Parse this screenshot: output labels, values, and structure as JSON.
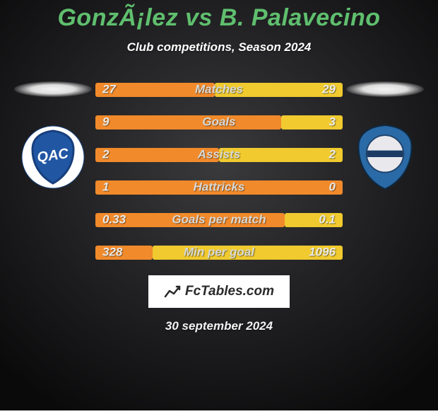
{
  "title": "GonzÃ¡lez vs B. Palavecino",
  "title_color": "#5fbf6e",
  "subtitle": "Club competitions, Season 2024",
  "subtitle_color": "#ffffff",
  "background": {
    "base": "#151516",
    "glow_center": "#3a3a3c"
  },
  "track_color": "#393e3a",
  "left_bar_color": "#f18a2b",
  "right_bar_color": "#f0ca2e",
  "label_color": "#d7d9d7",
  "value_color": "#e9eae8",
  "stats": [
    {
      "label": "Matches",
      "left_val": "27",
      "right_val": "29",
      "left_pct": 48.2,
      "right_pct": 51.8
    },
    {
      "label": "Goals",
      "left_val": "9",
      "right_val": "3",
      "left_pct": 75.0,
      "right_pct": 25.0
    },
    {
      "label": "Assists",
      "left_val": "2",
      "right_val": "2",
      "left_pct": 50.0,
      "right_pct": 50.0
    },
    {
      "label": "Hattricks",
      "left_val": "1",
      "right_val": "0",
      "left_pct": 100.0,
      "right_pct": 0.0
    },
    {
      "label": "Goals per match",
      "left_val": "0.33",
      "right_val": "0.1",
      "left_pct": 76.7,
      "right_pct": 23.3
    },
    {
      "label": "Min per goal",
      "left_val": "328",
      "right_val": "1096",
      "left_pct": 23.0,
      "right_pct": 77.0
    }
  ],
  "left_club": {
    "name": "left-club-badge",
    "bg": "#ffffff",
    "shield_fill": "#2156a3",
    "shield_stroke": "#173f7d",
    "text": "QAC",
    "text_color": "#ffffff"
  },
  "right_club": {
    "name": "right-club-badge",
    "bg": "#2a6aa6",
    "inner_bg": "#e9e9ed",
    "stripe": "#1c3c66"
  },
  "branding_text": "FcTables.com",
  "date_text": "30 september 2024",
  "date_color": "#f2f2f2"
}
